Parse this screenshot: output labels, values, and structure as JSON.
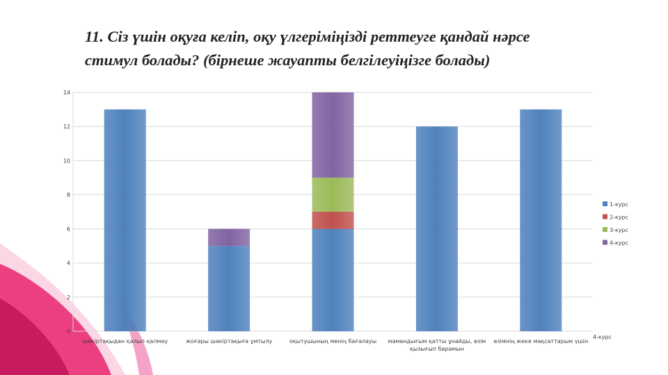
{
  "slide": {
    "title_line1": "11. Сіз үшін оқуға келіп, оқу үлгеріміңізді реттеуге қандай нәрсе",
    "title_line2": "стимул болады? (бірнеше жауапты белгілеуіңізге болады)"
  },
  "colors": {
    "series": [
      "#4f81bd",
      "#c0504d",
      "#9bbb59",
      "#8064a2"
    ],
    "grid": "#d9d9d9",
    "text": "#404040",
    "decor": [
      "#e8246f",
      "#f07ab0",
      "#c2185b"
    ]
  },
  "chart_data": {
    "type": "bar",
    "stacked": true,
    "categories": [
      [
        "шәкіртақыдан қалып қалмау"
      ],
      [
        "жоғары шәкіртақыға ұмтылу"
      ],
      [
        "оқытушының менің бағалауы"
      ],
      [
        "мамандығым қатты ұнайды, өзім",
        "қызығып барамын"
      ],
      [
        "өзімнің жеке мақсаттарым үшін"
      ]
    ],
    "series": [
      {
        "name": "1-курс",
        "values": [
          13,
          5,
          6,
          12,
          13
        ]
      },
      {
        "name": "2-курс",
        "values": [
          0,
          0,
          1,
          0,
          0
        ]
      },
      {
        "name": "3-курс",
        "values": [
          0,
          0,
          2,
          0,
          0
        ]
      },
      {
        "name": "4-курс",
        "values": [
          0,
          1,
          5,
          0,
          0
        ]
      }
    ],
    "ylim": [
      0,
      14
    ],
    "yticks": [
      "0",
      "2",
      "4",
      "6",
      "8",
      "10",
      "12",
      "14"
    ],
    "grid": true,
    "legend": "right",
    "stray_label": "4-курс"
  }
}
